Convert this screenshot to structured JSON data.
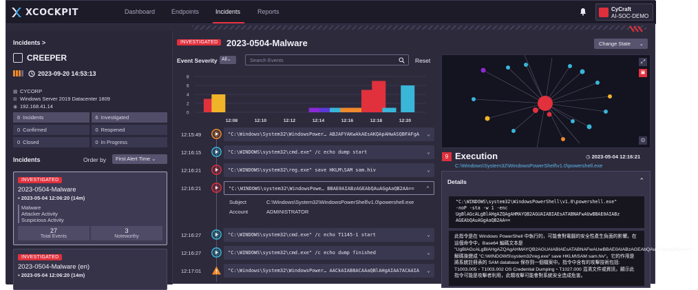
{
  "nav": {
    "brand": "XCOCKPIT",
    "items": [
      "Dashboard",
      "Endpoints",
      "Incidents",
      "Reports"
    ],
    "active": "Incidents",
    "org_name": "CyCraft",
    "org_sub": "AI-SOC-DEMO"
  },
  "left": {
    "breadcrumb": "Incidents >",
    "host": "CREEPER",
    "host_time": "2023-09-20 14:53:13",
    "org": "CYCORP",
    "os": "Windows Server 2019 Datacenter 1809",
    "ip": "192.168.41.14",
    "meta_icons": {
      "org": "building-icon",
      "os": "windows-icon",
      "ip": "network-icon"
    },
    "stats": [
      {
        "n": "6",
        "label": "Incidents"
      },
      {
        "n": "6",
        "label": "Investigated"
      },
      {
        "n": "0",
        "label": "Confirmed"
      },
      {
        "n": "0",
        "label": "Reopened"
      },
      {
        "n": "0",
        "label": "Closed"
      },
      {
        "n": "0",
        "label": "In Progress"
      }
    ],
    "incidents_heading": "Incidents",
    "order_label": "Order by",
    "order_value": "First Alert Time",
    "cards": [
      {
        "badge": "INVESTIGATED",
        "title": "2023-0504-Malware",
        "time": "2023-05-04 12:06:20 (14m)",
        "tags": [
          "Malware",
          "Attacker Activity",
          "Suspicious Activity"
        ],
        "total_events": "27",
        "total_label": "Total Events",
        "noteworthy": "3",
        "noteworthy_label": "Noteworthy"
      },
      {
        "badge": "INVESTIGATED",
        "title": "2023-0504-Malware (en)",
        "time": "2023-05-04 12:06:20 (14m)"
      }
    ]
  },
  "center": {
    "badge": "INVESTIGATED",
    "title": "2023-0504-Malware",
    "severity_label": "Event Severity",
    "severity_value": "All",
    "search_placeholder": "Search Events",
    "reset": "Reset",
    "events": [
      {
        "time": "12:15:49",
        "cmd": "\"C:\\Windows\\System32\\WindowsPower… ABJAFYAKwAkAEsAKQApAHwASQBFAFgA",
        "color": "#f08a2c",
        "icon": "play-icon"
      },
      {
        "time": "12:16:15",
        "cmd": "\"C:\\WINDOWS\\system32\\cmd.exe\" /c echo dump start",
        "color": "#39b6d8",
        "icon": "play-icon"
      },
      {
        "time": "12:16:21",
        "cmd": "\"C:\\WINDOWS\\system32\\reg.exe\" save HKLM\\SAM sam.hiv",
        "color": "#e0313d",
        "icon": "play-icon"
      },
      {
        "time": "12:16:21",
        "cmd": "\"C:\\WINDOWS\\system32\\WindowsPowe… BBAE0AIABzAGEAbQAuAGgAaQB2AA==",
        "color": "#e0313d",
        "icon": "play-icon",
        "selected": true
      },
      {
        "time": "12:16:27",
        "cmd": "\"C:\\WINDOWS\\system32\\cmd.exe\" /c echo T1145-1 start",
        "color": "#39b6d8",
        "icon": "play-icon"
      },
      {
        "time": "12:16:27",
        "cmd": "\"C:\\WINDOWS\\system32\\cmd.exe\" /c echo dump finished",
        "color": "#39b6d8",
        "icon": "play-icon"
      },
      {
        "time": "12:17:01",
        "cmd": "\"C:\\Windows\\System32\\WindowsPower… AACkAIAB8ACAAaQBlAHgAIAA7ACAAIA",
        "color": "#f08a2c",
        "icon": "warning-icon"
      }
    ],
    "detail": {
      "subject_label": "Subject",
      "subject_value": "C:\\Windows\\System32\\WindowsPowerShell\\v1.0\\powershell.exe",
      "account_label": "Account",
      "account_value": "ADMINISTRATOR"
    }
  },
  "chart_data": {
    "type": "bar",
    "title": "",
    "xlabel": "",
    "ylabel": "",
    "ylim": [
      0,
      8
    ],
    "yticks": [
      "0",
      "2",
      "4",
      "6",
      "8"
    ],
    "xticks": [
      "12:08",
      "12:10",
      "12:12",
      "12:14",
      "12:16",
      "12:18",
      "12:20"
    ],
    "x": [
      12.02,
      12.05,
      12.42,
      12.46,
      12.5,
      12.54,
      12.58,
      12.62,
      12.66,
      12.7,
      12.77
    ],
    "values": [
      3,
      4,
      1,
      1,
      1,
      1,
      1,
      5,
      7,
      1,
      6
    ],
    "colors": [
      "#e0313d",
      "#f0b429",
      "#8b2ad6",
      "#5b39d6",
      "#39b6d8",
      "#f08a2c",
      "#f08a2c",
      "#e0313d",
      "#e0313d",
      "#39b6d8",
      "#39b6d8"
    ]
  },
  "right": {
    "change_state": "Change State",
    "exec_num": "9",
    "exec_title": "Execution",
    "exec_time": "2023-05-04 12:16:21",
    "exec_path": "C:\\Windows\\System32\\WindowsPowerShell\\v1.0\\powershell.exe",
    "details_heading": "Details",
    "code": "\"C:\\WINDOWS\\system32\\WindowsPowerShell\\v1.0\\powershell.exe\"\n-noP -sta -w 1 -enc\nUgBlAGcALgBlAHgAZQAgAHMAYQB2AGUAIABIAEsATABNAFwAUwBBAE0AIABz\nAGEAbQAuAGgAaQB2AA==",
    "explain": "此指令是在 Windows PowerShell 中執行的，可能會對電腦的安全性產生負面的影響。在這個命令中，Base64 編碼文本是 \"UgBlAGcALgBlAHgAZQAgAHMAYQB2AGUAIABIAEsATABNAFwAUwBBAE0AIABzAGEAbQAuAGgAaQB2AA==\"，解碼後變成 \"C:\\WINDOWS\\system32\\reg.exe\" save HKLM\\SAM sam.hiv\"。它的作用是將系統註冊表的 SAM database 保存到一個檔案中。指令中含有的攻擊技術包括: T1003.005・T1003.002 OS Credential Dumping・T1027.000 混淆文件或資訊，顯示此指令可能是攻擊者利用，此類攻擊可能會對系統安全造成危害。"
  }
}
